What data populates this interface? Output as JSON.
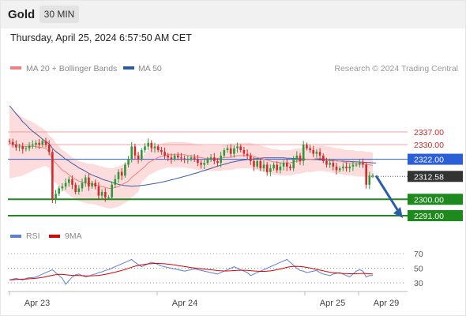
{
  "header": {
    "symbol": "Gold",
    "interval": "30 MIN",
    "datetime": "Thursday, April 25, 2024 6:57:50 AM CET"
  },
  "legend": {
    "ma20": {
      "label": "MA 20 + Bollinger Bands",
      "color": "#f08080"
    },
    "ma50": {
      "label": "MA 50",
      "color": "#2f5b9a"
    },
    "credit": "Research © 2024 Trading Central"
  },
  "rsi_legend": {
    "rsi": {
      "label": "RSI",
      "color": "#5b7fd6"
    },
    "ma9": {
      "label": "9MA",
      "color": "#e00000"
    }
  },
  "colors": {
    "up": "#2d9a3a",
    "down": "#d42a2a",
    "support": "#1e8a1e",
    "resistance": "#f2a0a0",
    "pivot": "#2b5fd8",
    "price": "#333333",
    "band": "#fbd3d3",
    "arrow": "#2a5fa8"
  },
  "chart_data": [
    {
      "type": "candlestick",
      "x_ticks": [
        "Apr 23",
        "Apr 24",
        "Apr 25",
        "Apr 29"
      ],
      "ylim": [
        2280,
        2360
      ],
      "levels": [
        {
          "value": 2337.0,
          "label": "2337.00",
          "kind": "resistance"
        },
        {
          "value": 2330.0,
          "label": "2330.00",
          "kind": "resistance"
        },
        {
          "value": 2322.0,
          "label": "2322.00",
          "kind": "pivot"
        },
        {
          "value": 2312.58,
          "label": "2312.58",
          "kind": "last-price"
        },
        {
          "value": 2300.0,
          "label": "2300.00",
          "kind": "support"
        },
        {
          "value": 2291.0,
          "label": "2291.00",
          "kind": "support"
        }
      ],
      "projection": {
        "from": 2313,
        "to": 2291,
        "direction": "down"
      },
      "close": [
        2331.5,
        2330,
        2328.5,
        2329,
        2327.5,
        2328,
        2329.5,
        2330,
        2331,
        2330,
        2332,
        2330,
        2326,
        2300,
        2303,
        2306,
        2307,
        2309,
        2311,
        2308,
        2304,
        2306,
        2309,
        2312,
        2307,
        2309,
        2307,
        2302,
        2304,
        2301,
        2301,
        2308,
        2311,
        2315,
        2313,
        2319,
        2322,
        2329,
        2324,
        2322,
        2327,
        2329,
        2331,
        2328,
        2329,
        2327,
        2326,
        2324,
        2323,
        2322,
        2324,
        2323,
        2322.5,
        2322,
        2322,
        2323,
        2322,
        2320,
        2319,
        2320,
        2322,
        2323,
        2321,
        2320,
        2324,
        2327,
        2328,
        2325,
        2328,
        2329,
        2327,
        2325,
        2324,
        2321,
        2318,
        2321,
        2317,
        2319,
        2315,
        2317,
        2319,
        2316,
        2318,
        2320,
        2318,
        2317,
        2322,
        2324,
        2321,
        2330,
        2328,
        2327,
        2325,
        2326,
        2324,
        2321,
        2319,
        2320,
        2318,
        2316,
        2317,
        2318,
        2317,
        2318,
        2319,
        2319,
        2320,
        2319,
        2308,
        2313,
        2313
      ],
      "ma20": [
        2331,
        2330.5,
        2330,
        2329.5,
        2329,
        2329,
        2329,
        2329,
        2329,
        2328.5,
        2328.5,
        2328,
        2326,
        2322,
        2320,
        2318,
        2316,
        2315,
        2313.5,
        2312,
        2311,
        2310,
        2309.5,
        2309,
        2308.5,
        2308.5,
        2308,
        2307.5,
        2307,
        2306.5,
        2306,
        2306,
        2306.5,
        2307,
        2308,
        2309,
        2310,
        2312,
        2313.5,
        2315,
        2316.5,
        2318,
        2320,
        2321,
        2322,
        2323,
        2323.5,
        2324,
        2324.5,
        2324.5,
        2324.5,
        2324.5,
        2324.5,
        2324.5,
        2324,
        2324,
        2323.5,
        2323,
        2323,
        2322.5,
        2322.5,
        2322.5,
        2322.5,
        2322.5,
        2322.5,
        2323,
        2323,
        2323,
        2323.5,
        2324,
        2324,
        2324,
        2324,
        2324,
        2323.5,
        2323,
        2322.5,
        2322,
        2321.5,
        2321,
        2320.5,
        2320.5,
        2320,
        2320,
        2320,
        2320,
        2320.5,
        2321,
        2321,
        2321.5,
        2322,
        2322,
        2322,
        2322.5,
        2322.5,
        2322.5,
        2322,
        2322,
        2321.5,
        2321,
        2321,
        2320.5,
        2320,
        2320,
        2320,
        2319.5,
        2319.5,
        2319.5,
        2319,
        2319,
        2318.5
      ],
      "ma50": [
        2351.4,
        2349.3,
        2347,
        2345,
        2342.6,
        2341,
        2339,
        2337.4,
        2336,
        2334.6,
        2333,
        2331.6,
        2330.5,
        2328,
        2326.3,
        2325,
        2323.6,
        2322,
        2321,
        2319.6,
        2318.6,
        2317.3,
        2316.4,
        2315.4,
        2314.2,
        2313.3,
        2312.6,
        2312,
        2311.1,
        2310.5,
        2310,
        2309.3,
        2308.7,
        2308.2,
        2307.8,
        2307.5,
        2307.4,
        2307.2,
        2307.3,
        2307.4,
        2307.6,
        2307.8,
        2308.1,
        2308.4,
        2308.7,
        2309,
        2309.4,
        2309.8,
        2310.2,
        2310.7,
        2311.1,
        2311.6,
        2312.1,
        2312.6,
        2313,
        2313.6,
        2314.2,
        2314.6,
        2315.3,
        2315.8,
        2316.4,
        2317,
        2317.6,
        2318.2,
        2318.7,
        2319.2,
        2319.7,
        2320.3,
        2320.6,
        2321,
        2321.3,
        2321.6,
        2321.8,
        2322,
        2322.2,
        2322.4,
        2322.6,
        2322.8,
        2322.8,
        2322.8,
        2322.8,
        2322.8,
        2322.8,
        2322.8,
        2322.6,
        2322.6,
        2322.4,
        2322.4,
        2322.2,
        2322.2,
        2322,
        2322,
        2321.8,
        2321.8,
        2321.6,
        2321.6,
        2321.4,
        2321.4,
        2321.2,
        2321.2,
        2321,
        2321,
        2320.8,
        2320.8,
        2320.6,
        2320.6,
        2320.4,
        2320.4,
        2320.2,
        2320.2,
        2320,
        2320
      ]
    },
    {
      "type": "line",
      "title": "RSI",
      "y_ticks": [
        70,
        50,
        30
      ],
      "ylim": [
        20,
        80
      ],
      "rsi": [
        34,
        35,
        36,
        35,
        34,
        36,
        37,
        37,
        38,
        40,
        42,
        44,
        46,
        48,
        44,
        40,
        36,
        28,
        33,
        38,
        41,
        42,
        40,
        38,
        39,
        41,
        42,
        44,
        45,
        47,
        48,
        50,
        52,
        54,
        56,
        58,
        60,
        62,
        58,
        55,
        52,
        54,
        56,
        58,
        57,
        55,
        53,
        52,
        51,
        50,
        49,
        48,
        47,
        46,
        47,
        48,
        49,
        48,
        47,
        46,
        45,
        44,
        43,
        42,
        44,
        46,
        48,
        50,
        52,
        50,
        48,
        46,
        44,
        40,
        42,
        44,
        46,
        48,
        50,
        52,
        54,
        56,
        58,
        60,
        62,
        58,
        54,
        50,
        47,
        46,
        44,
        45,
        46,
        47,
        44,
        42,
        41,
        40,
        42,
        43,
        44,
        42,
        40,
        38,
        42,
        46,
        48,
        46,
        38,
        40,
        40
      ],
      "ma9": [
        34,
        34.2,
        34.5,
        34.8,
        35,
        35.2,
        35.5,
        35.8,
        36.2,
        36.8,
        37.5,
        38.3,
        39.3,
        40.3,
        41,
        41.5,
        41.5,
        41,
        40.5,
        40.3,
        40.2,
        40,
        39.8,
        39.6,
        39.5,
        39.6,
        39.8,
        40.2,
        40.8,
        41.6,
        42.5,
        43.5,
        44.6,
        45.8,
        47,
        48.3,
        49.8,
        51.3,
        52.7,
        53.8,
        54.6,
        55.3,
        55.9,
        56.3,
        56.5,
        56.5,
        56.3,
        56,
        55.5,
        55,
        54.4,
        53.7,
        53,
        52.3,
        51.6,
        50.9,
        50.3,
        49.8,
        49.3,
        48.8,
        48.3,
        47.8,
        47.3,
        46.8,
        46.4,
        46.2,
        46.2,
        46.4,
        46.8,
        47.1,
        47.2,
        47.2,
        47,
        46.6,
        46.2,
        45.9,
        45.7,
        45.7,
        45.9,
        46.3,
        47,
        47.9,
        48.9,
        50,
        51.2,
        52,
        52.5,
        52.6,
        52.3,
        51.8,
        51.1,
        50.3,
        49.4,
        48.4,
        47.4,
        46.4,
        45.4,
        44.6,
        44,
        43.5,
        43.1,
        42.8,
        42.6,
        42.4,
        42.4,
        42.5,
        42.8,
        43,
        42.8,
        42.4,
        42
      ]
    }
  ]
}
